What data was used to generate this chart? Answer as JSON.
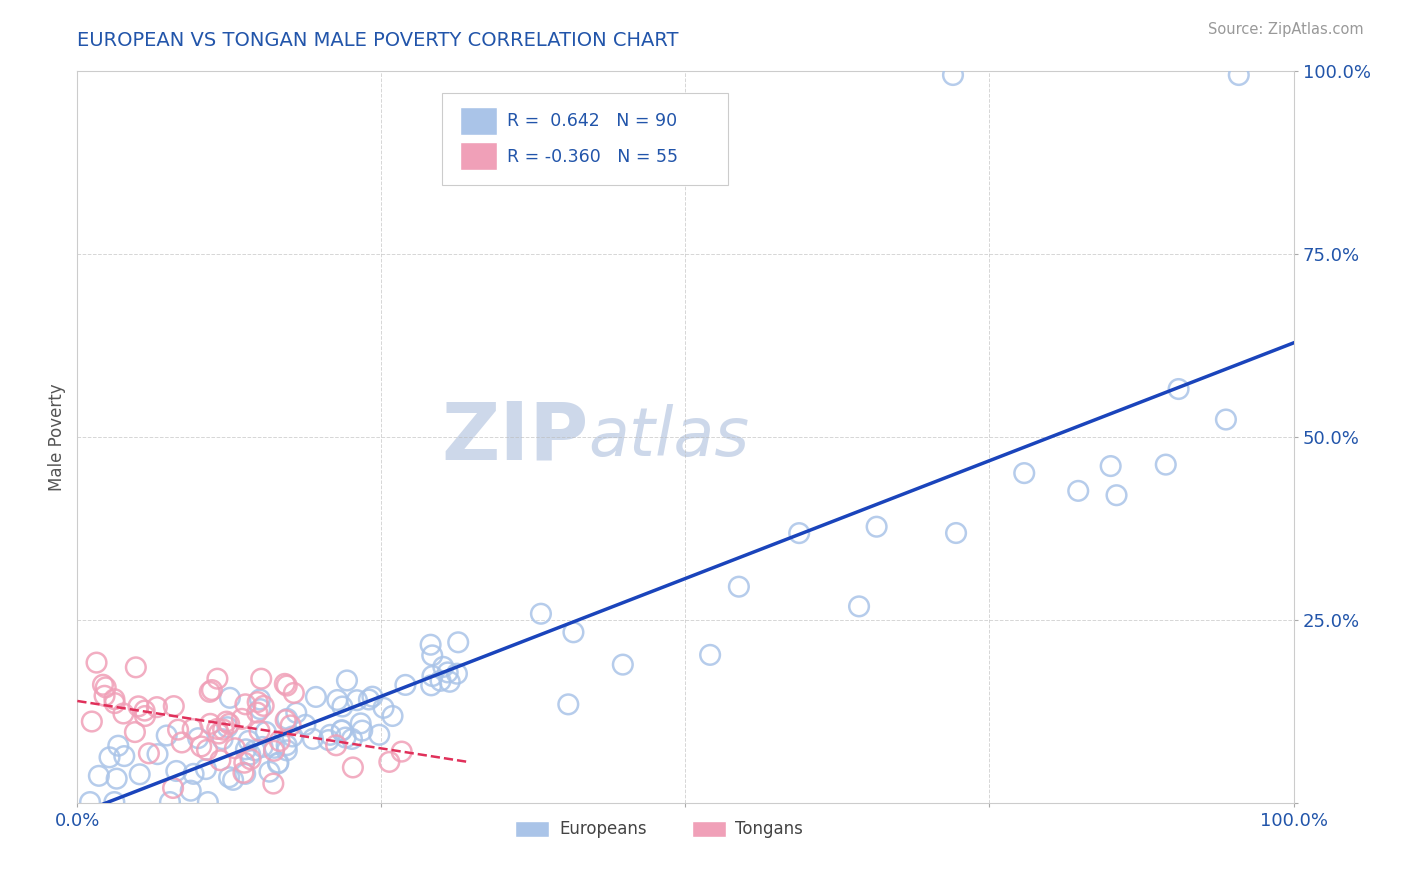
{
  "title": "EUROPEAN VS TONGAN MALE POVERTY CORRELATION CHART",
  "source": "Source: ZipAtlas.com",
  "ylabel": "Male Poverty",
  "xlim": [
    0,
    1
  ],
  "ylim": [
    0,
    1
  ],
  "blue_R": 0.642,
  "blue_N": 90,
  "pink_R": -0.36,
  "pink_N": 55,
  "blue_color": "#aac4e8",
  "pink_color": "#f0a0b8",
  "blue_line_color": "#1a44bb",
  "pink_line_color": "#e0305a",
  "watermark": "ZIPatlas",
  "watermark_color": "#c8d4e8",
  "background_color": "#ffffff",
  "grid_color": "#bbbbbb",
  "title_color": "#2255aa",
  "tick_color": "#2255aa",
  "legend_text_color": "#2255aa"
}
